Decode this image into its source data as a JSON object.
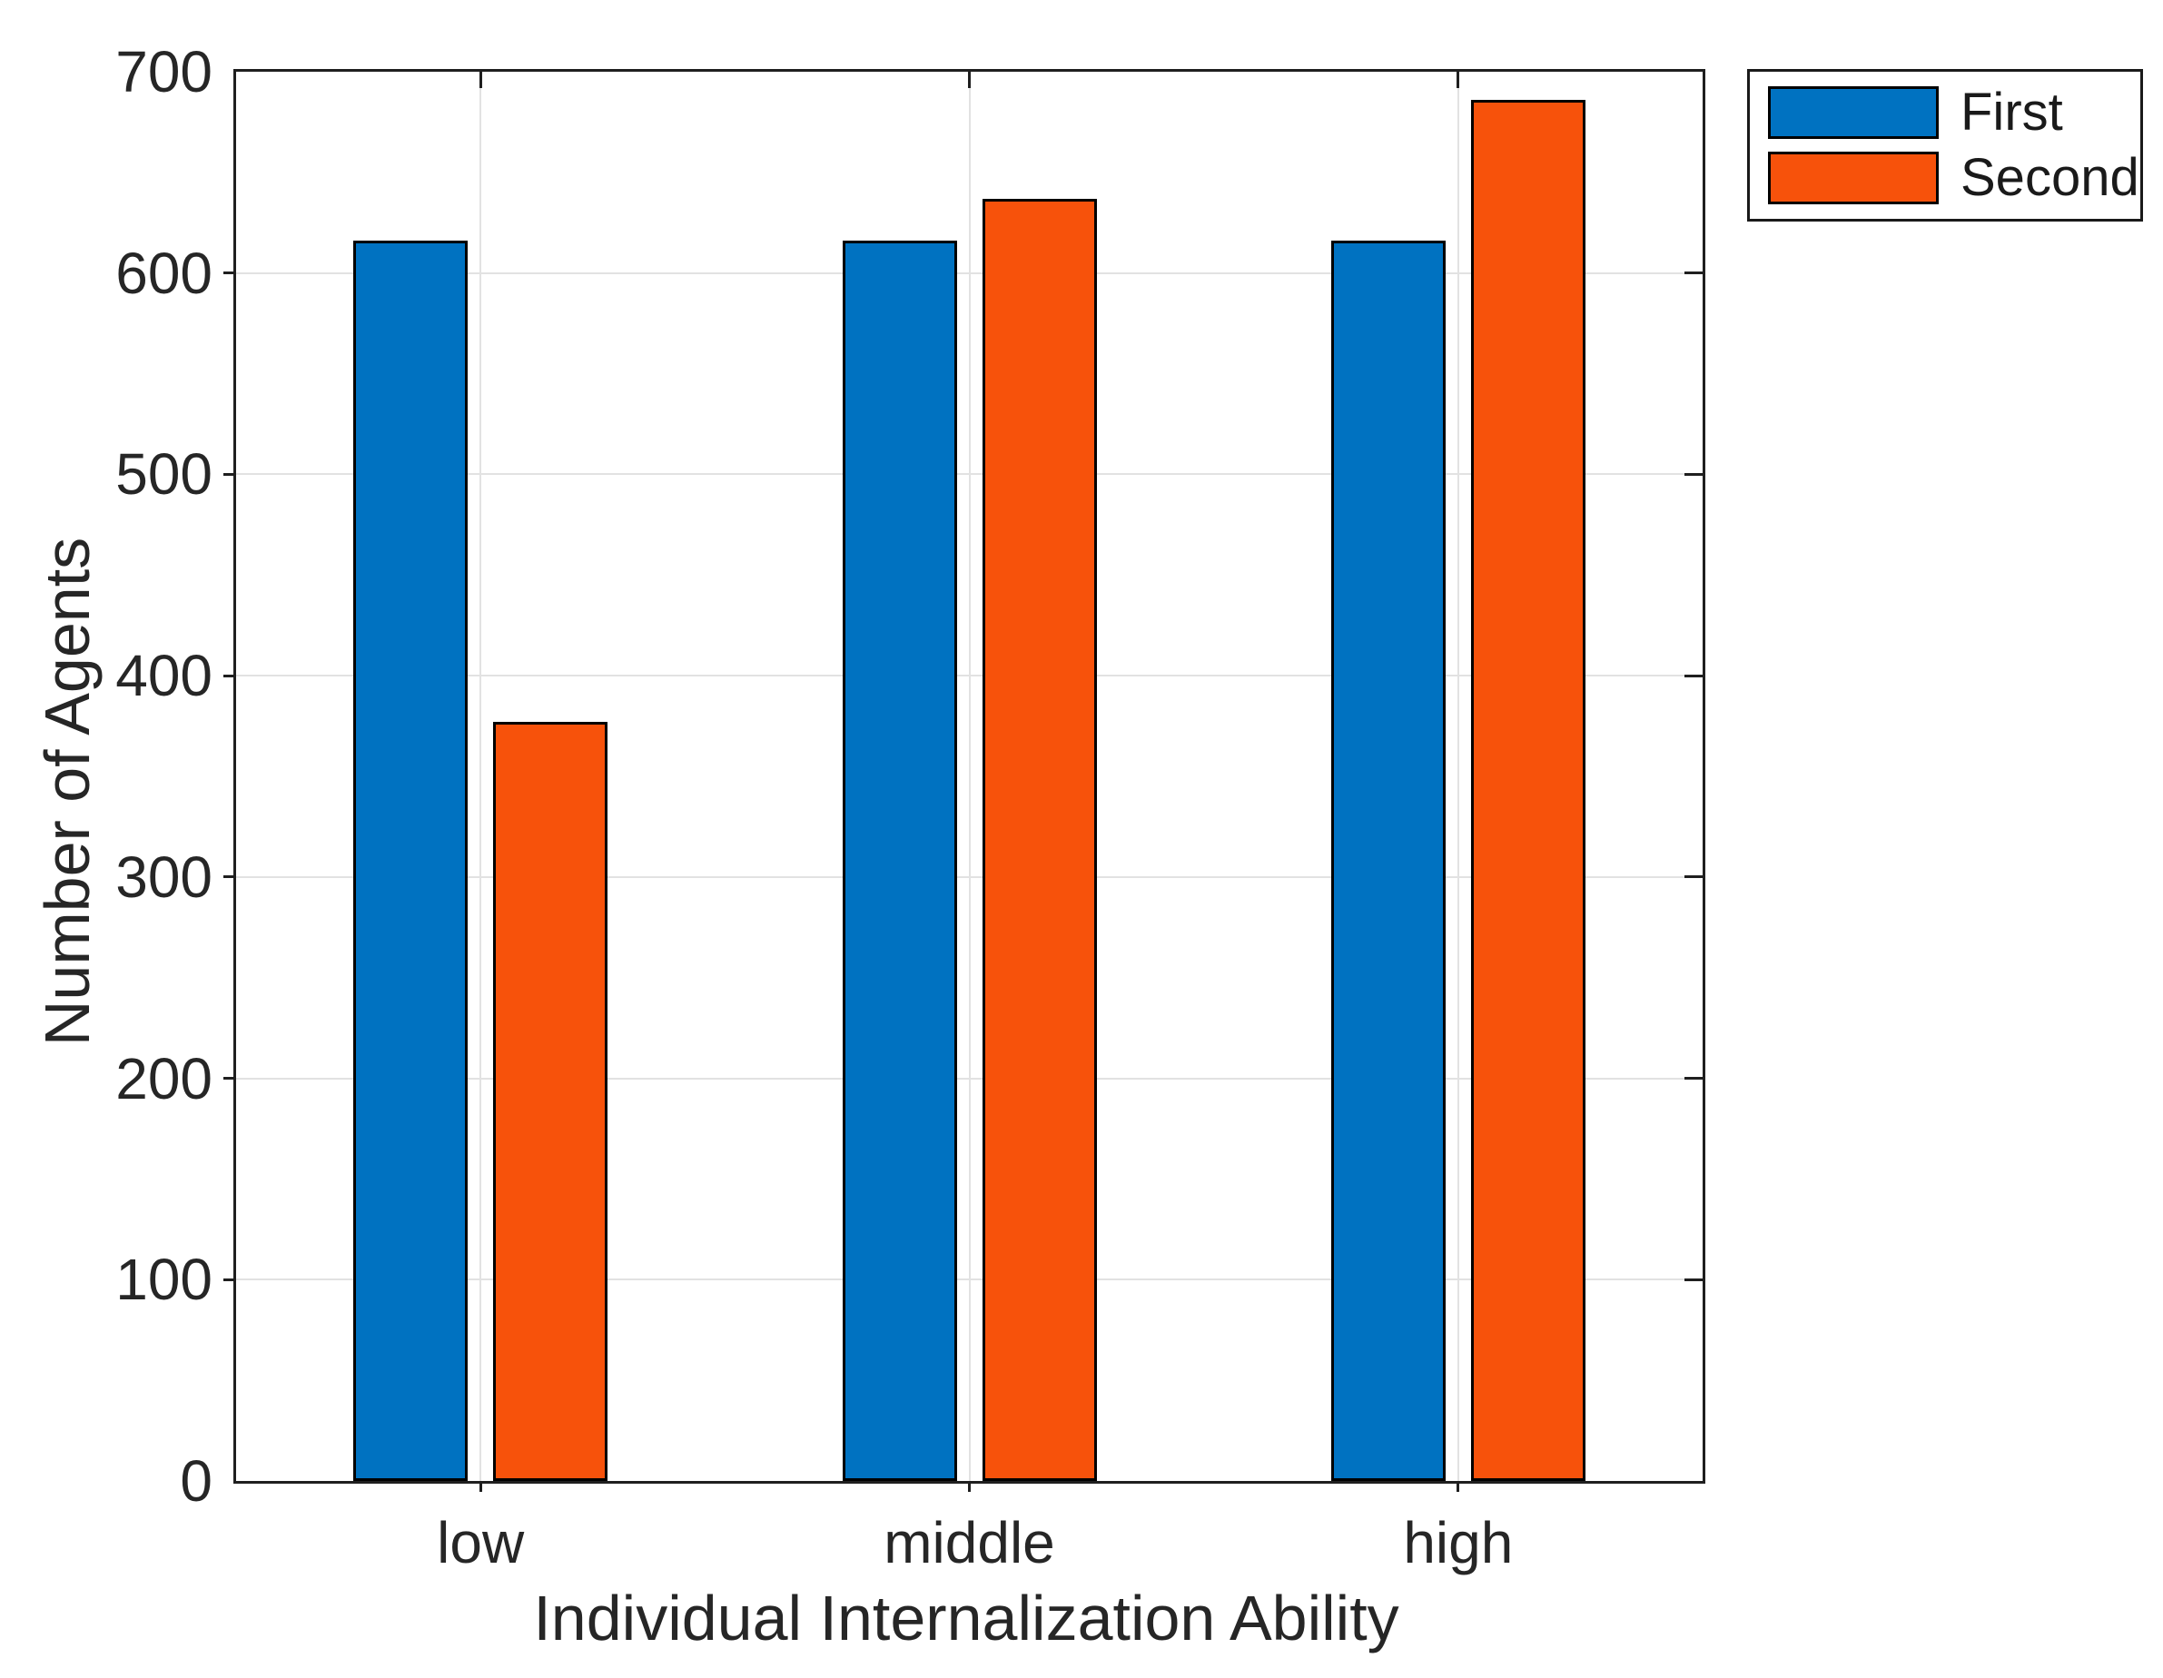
{
  "chart_data": {
    "type": "bar",
    "title": "",
    "categories": [
      "low",
      "middle",
      "high"
    ],
    "series": [
      {
        "name": "First",
        "color": "#0072C1",
        "values": [
          616,
          616,
          616
        ]
      },
      {
        "name": "Second",
        "color": "#F7520B",
        "values": [
          377,
          637,
          686
        ]
      }
    ],
    "xlabel": "Individual Internalization Ability",
    "ylabel": "Number of Agents",
    "ylim": [
      0,
      700
    ],
    "yticks": [
      0,
      100,
      200,
      300,
      400,
      500,
      600,
      700
    ],
    "grid": true,
    "legend_position": "northeast-outside",
    "bar_edge_color": "#000000",
    "axis_color": "#1F1F1F",
    "grid_color": "#E2E2E2",
    "text_color": "#262626"
  }
}
